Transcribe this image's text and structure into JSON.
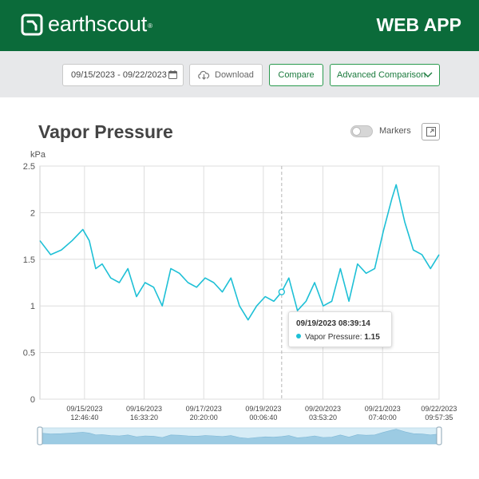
{
  "header": {
    "brand": "earthscout",
    "brand_mark": "®",
    "logo_icon": "earthscout-logo-icon",
    "app_label": "WEB APP",
    "bg_color": "#0b6b3a"
  },
  "toolbar": {
    "date_range": "09/15/2023 - 09/22/2023",
    "calendar_icon": "calendar-icon",
    "download_label": "Download",
    "download_icon": "cloud-download-icon",
    "compare_label": "Compare",
    "advanced_label": "Advanced Comparison",
    "accent_color": "#2a9a4e"
  },
  "panel": {
    "title": "Vapor Pressure",
    "markers_label": "Markers",
    "markers_on": false
  },
  "tooltip": {
    "timestamp": "09/19/2023  08:39:14",
    "series_label": "Vapor Pressure: ",
    "value": "1.15"
  },
  "chart_data": {
    "type": "line",
    "ylabel": "kPa",
    "ylim": [
      0,
      2.5
    ],
    "yticks": [
      "0",
      "0.5",
      "1",
      "1.5",
      "2",
      "2.5"
    ],
    "xlim": [
      "09/14/2023 16:00",
      "09/22/2023 10:00"
    ],
    "xticks": [
      {
        "date": "09/15/2023",
        "time": "12:46:40"
      },
      {
        "date": "09/16/2023",
        "time": "16:33:20"
      },
      {
        "date": "09/17/2023",
        "time": "20:20:00"
      },
      {
        "date": "09/19/2023",
        "time": "00:06:40"
      },
      {
        "date": "09/20/2023",
        "time": "03:53:20"
      },
      {
        "date": "09/21/2023",
        "time": "07:40:00"
      },
      {
        "date": "09/22/2023",
        "time": "09:57:35"
      }
    ],
    "grid": true,
    "crosshair_x": "09/19/2023 08:39",
    "series_color": "#1ec0d6",
    "series": [
      {
        "name": "Vapor Pressure",
        "x": [
          "09/14/2023 16:00",
          "09/14/2023 21:00",
          "09/15/2023 02:00",
          "09/15/2023 07:00",
          "09/15/2023 12:00",
          "09/15/2023 15:00",
          "09/15/2023 18:00",
          "09/15/2023 21:00",
          "09/16/2023 01:00",
          "09/16/2023 05:00",
          "09/16/2023 09:00",
          "09/16/2023 13:00",
          "09/16/2023 17:00",
          "09/16/2023 21:00",
          "09/17/2023 01:00",
          "09/17/2023 05:00",
          "09/17/2023 09:00",
          "09/17/2023 13:00",
          "09/17/2023 17:00",
          "09/17/2023 21:00",
          "09/18/2023 01:00",
          "09/18/2023 05:00",
          "09/18/2023 09:00",
          "09/18/2023 13:00",
          "09/18/2023 17:00",
          "09/18/2023 21:00",
          "09/19/2023 01:00",
          "09/19/2023 05:00",
          "09/19/2023 08:39",
          "09/19/2023 12:00",
          "09/19/2023 16:00",
          "09/19/2023 20:00",
          "09/20/2023 00:00",
          "09/20/2023 04:00",
          "09/20/2023 08:00",
          "09/20/2023 12:00",
          "09/20/2023 16:00",
          "09/20/2023 20:00",
          "09/21/2023 00:00",
          "09/21/2023 04:00",
          "09/21/2023 08:00",
          "09/21/2023 12:00",
          "09/21/2023 14:00",
          "09/21/2023 18:00",
          "09/21/2023 22:00",
          "09/22/2023 02:00",
          "09/22/2023 06:00",
          "09/22/2023 10:00"
        ],
        "values": [
          1.7,
          1.55,
          1.6,
          1.7,
          1.82,
          1.7,
          1.4,
          1.45,
          1.3,
          1.25,
          1.4,
          1.1,
          1.25,
          1.2,
          1.0,
          1.4,
          1.35,
          1.25,
          1.2,
          1.3,
          1.25,
          1.15,
          1.3,
          1.0,
          0.85,
          1.0,
          1.1,
          1.05,
          1.15,
          1.3,
          0.95,
          1.05,
          1.25,
          1.0,
          1.05,
          1.4,
          1.05,
          1.45,
          1.35,
          1.4,
          1.8,
          2.15,
          2.3,
          1.9,
          1.6,
          1.55,
          1.4,
          1.55
        ]
      }
    ]
  }
}
